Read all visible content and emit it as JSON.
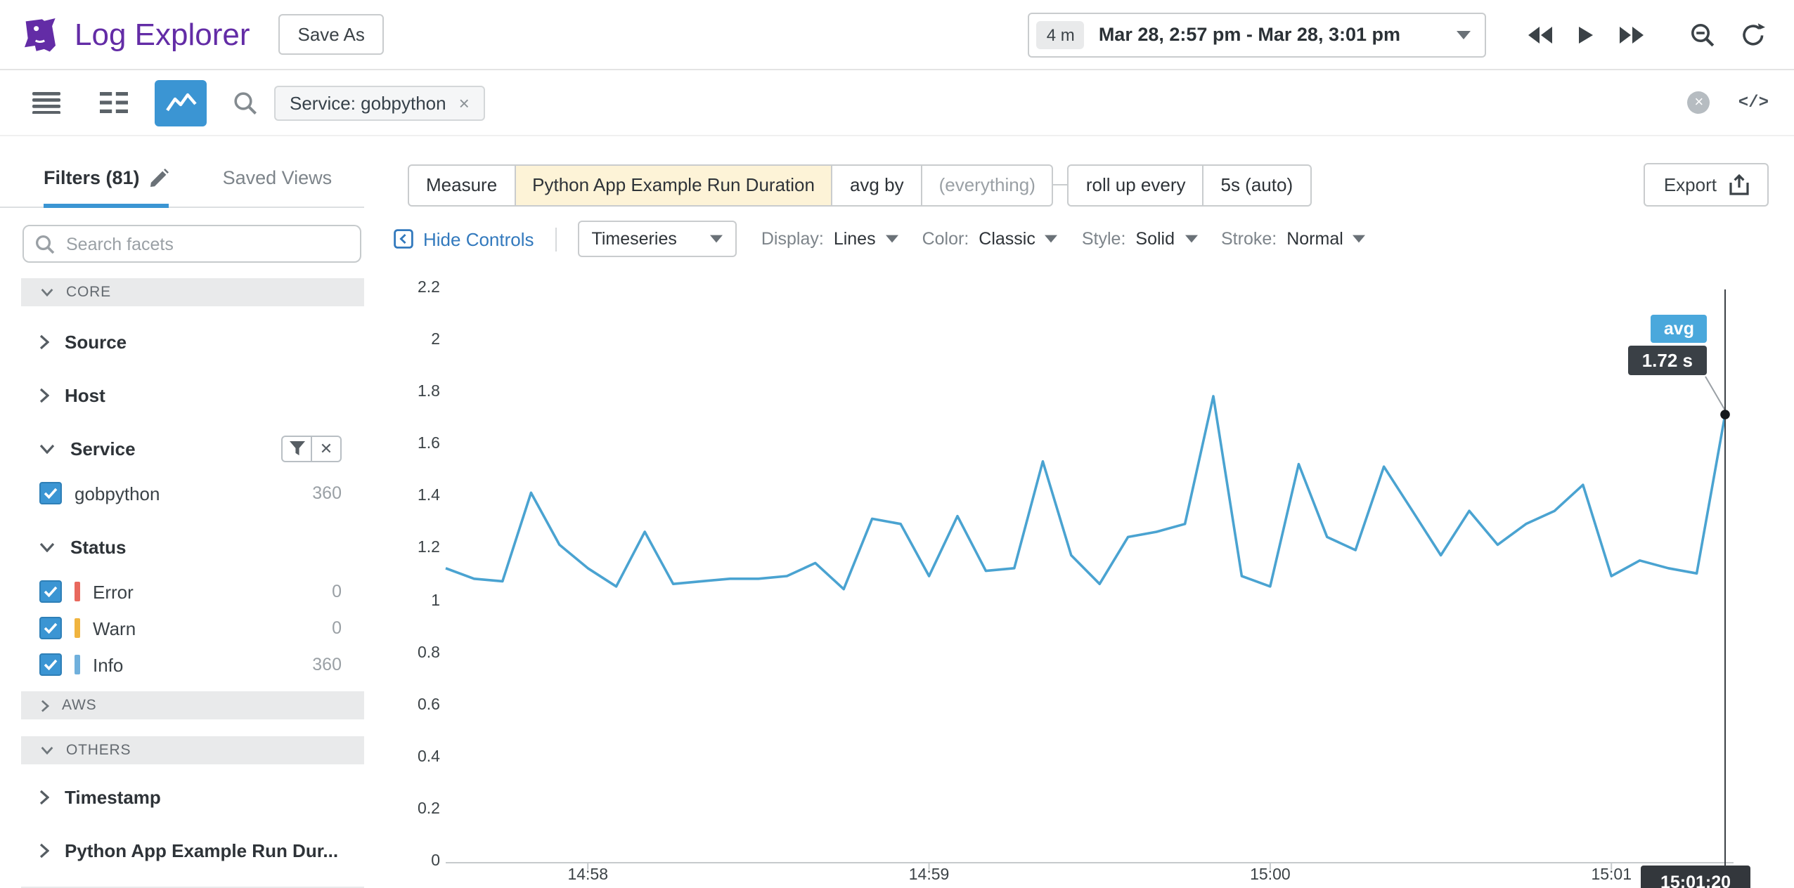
{
  "header": {
    "app_title": "Log Explorer",
    "save_as_label": "Save As",
    "time_range": {
      "duration_badge": "4 m",
      "range_text": "Mar 28, 2:57 pm - Mar 28, 3:01 pm"
    }
  },
  "toolbar": {
    "search_chip": "Service: gobpython",
    "remove_glyph": "×",
    "clear_glyph": "×",
    "code_view_glyph": "</>"
  },
  "sidebar": {
    "tab_filters": "Filters (81)",
    "tab_saved_views": "Saved Views",
    "search_placeholder": "Search facets",
    "section_core": "CORE",
    "facet_source": "Source",
    "facet_host": "Host",
    "facet_service": "Service",
    "service_values": [
      {
        "label": "gobpython",
        "count": "360"
      }
    ],
    "facet_status": "Status",
    "status_values": [
      {
        "label": "Error",
        "count": "0",
        "color": "#e8685d"
      },
      {
        "label": "Warn",
        "count": "0",
        "color": "#f0b43f"
      },
      {
        "label": "Info",
        "count": "360",
        "color": "#70b0dc"
      }
    ],
    "section_aws": "AWS",
    "section_others": "OTHERS",
    "facet_timestamp": "Timestamp",
    "facet_duration": "Python App Example Run Dur..."
  },
  "query": {
    "measure_label": "Measure",
    "measure_value": "Python App Example Run Duration",
    "agg_label": "avg by",
    "agg_value": "(everything)",
    "rollup_label": "roll up every",
    "rollup_value": "5s (auto)",
    "export_label": "Export"
  },
  "controls": {
    "hide_controls_label": "Hide Controls",
    "graph_type": "Timeseries",
    "display_label": "Display:",
    "display_value": "Lines",
    "color_label": "Color:",
    "color_value": "Classic",
    "style_label": "Style:",
    "style_value": "Solid",
    "stroke_label": "Stroke:",
    "stroke_value": "Normal"
  },
  "chart_data": {
    "type": "line",
    "title": "",
    "xlabel": "",
    "ylabel": "",
    "ylim": [
      0,
      2.2
    ],
    "y_tick_step": 0.2,
    "grid": false,
    "legend": "none",
    "x_tick_labels": [
      "14:58",
      "14:59",
      "15:00",
      "15:01"
    ],
    "x_tick_indices": [
      5,
      17,
      29,
      41
    ],
    "series": [
      {
        "name": "avg:Python App Example Run Duration",
        "color": "#4aa3d1",
        "values": [
          1.13,
          1.09,
          1.08,
          1.42,
          1.22,
          1.13,
          1.06,
          1.27,
          1.07,
          1.08,
          1.09,
          1.09,
          1.1,
          1.15,
          1.05,
          1.32,
          1.3,
          1.1,
          1.33,
          1.12,
          1.13,
          1.54,
          1.18,
          1.07,
          1.25,
          1.27,
          1.3,
          1.79,
          1.1,
          1.06,
          1.53,
          1.25,
          1.2,
          1.52,
          1.35,
          1.18,
          1.35,
          1.22,
          1.3,
          1.35,
          1.45,
          1.1,
          1.16,
          1.13,
          1.11,
          1.72
        ]
      }
    ],
    "cursor": {
      "timestamp": "15:01:20",
      "series_label": "avg",
      "value_label": "1.72 s",
      "value": 1.72
    }
  },
  "colors": {
    "brand_purple": "#632ca6",
    "accent_blue": "#3b95d3",
    "series_blue": "#4aa3d1",
    "status_error": "#e8685d",
    "status_warn": "#f0b43f",
    "status_info": "#70b0dc",
    "measure_highlight_bg": "#fdf3d7",
    "badge_dark": "#3a4046"
  }
}
